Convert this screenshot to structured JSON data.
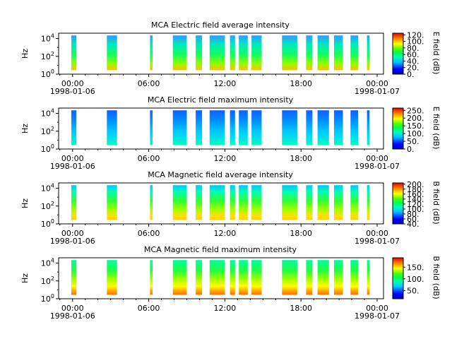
{
  "chart_data": [
    {
      "type": "heatmap",
      "title": "MCA  Electric field average intensity",
      "ylabel": "Hz",
      "y_ticks": [
        "10^0",
        "10^2",
        "10^4"
      ],
      "x_ticks": [
        "00:00",
        "06:00",
        "12:00",
        "18:00",
        "00:00"
      ],
      "x_dates": [
        "1998-01-06",
        "",
        "",
        "",
        "1998-01-07"
      ],
      "colorbar": {
        "label": "E field (dB)",
        "ticks": [
          "0.",
          "20.",
          "40.",
          "60.",
          "80.",
          "100.",
          "120."
        ],
        "range": [
          0,
          125
        ]
      },
      "palette": "blue-low"
    },
    {
      "type": "heatmap",
      "title": "MCA  Electric field maximum intensity",
      "ylabel": "Hz",
      "y_ticks": [
        "10^0",
        "10^2",
        "10^4"
      ],
      "x_ticks": [
        "00:00",
        "06:00",
        "12:00",
        "18:00",
        "00:00"
      ],
      "x_dates": [
        "1998-01-06",
        "",
        "",
        "",
        "1998-01-07"
      ],
      "colorbar": {
        "label": "E field (dB)",
        "ticks": [
          "0.",
          "50.",
          "100.",
          "150.",
          "200.",
          "250."
        ],
        "range": [
          0,
          265
        ]
      },
      "palette": "blue-dominant"
    },
    {
      "type": "heatmap",
      "title": "MCA  Magnetic field average intensity",
      "ylabel": "Hz",
      "y_ticks": [
        "10^0",
        "10^2",
        "10^4"
      ],
      "x_ticks": [
        "00:00",
        "06:00",
        "12:00",
        "18:00",
        "00:00"
      ],
      "x_dates": [
        "1998-01-06",
        "",
        "",
        "",
        "1998-01-07"
      ],
      "colorbar": {
        "label": "B field (dB)",
        "ticks": [
          "40.",
          "60.",
          "80.",
          "100.",
          "120.",
          "140.",
          "160.",
          "180.",
          "200."
        ],
        "range": [
          40,
          205
        ]
      },
      "palette": "band"
    },
    {
      "type": "heatmap",
      "title": "MCA  Magnetic field maximum intensity",
      "ylabel": "Hz",
      "y_ticks": [
        "10^0",
        "10^2",
        "10^4"
      ],
      "x_ticks": [
        "00:00",
        "06:00",
        "12:00",
        "18:00",
        "00:00"
      ],
      "x_dates": [
        "1998-01-06",
        "",
        "",
        "",
        "1998-01-07"
      ],
      "colorbar": {
        "label": "B field (dB)",
        "ticks": [
          "50.",
          "100.",
          "150."
        ],
        "range": [
          15,
          190
        ]
      },
      "palette": "band-hot"
    }
  ],
  "data_segments_hours": [
    [
      -0.1,
      0.3
    ],
    [
      2.7,
      3.5
    ],
    [
      6.1,
      6.3
    ],
    [
      7.9,
      9.0
    ],
    [
      9.7,
      10.2
    ],
    [
      10.8,
      12.0
    ],
    [
      12.4,
      12.8
    ],
    [
      13.1,
      13.8
    ],
    [
      14.1,
      14.9
    ],
    [
      16.5,
      17.7
    ],
    [
      18.4,
      18.9
    ],
    [
      19.3,
      20.2
    ],
    [
      20.6,
      21.3
    ],
    [
      21.9,
      22.5
    ],
    [
      23.2,
      23.4
    ]
  ],
  "x_range_hours": [
    -1.1,
    24.5
  ]
}
